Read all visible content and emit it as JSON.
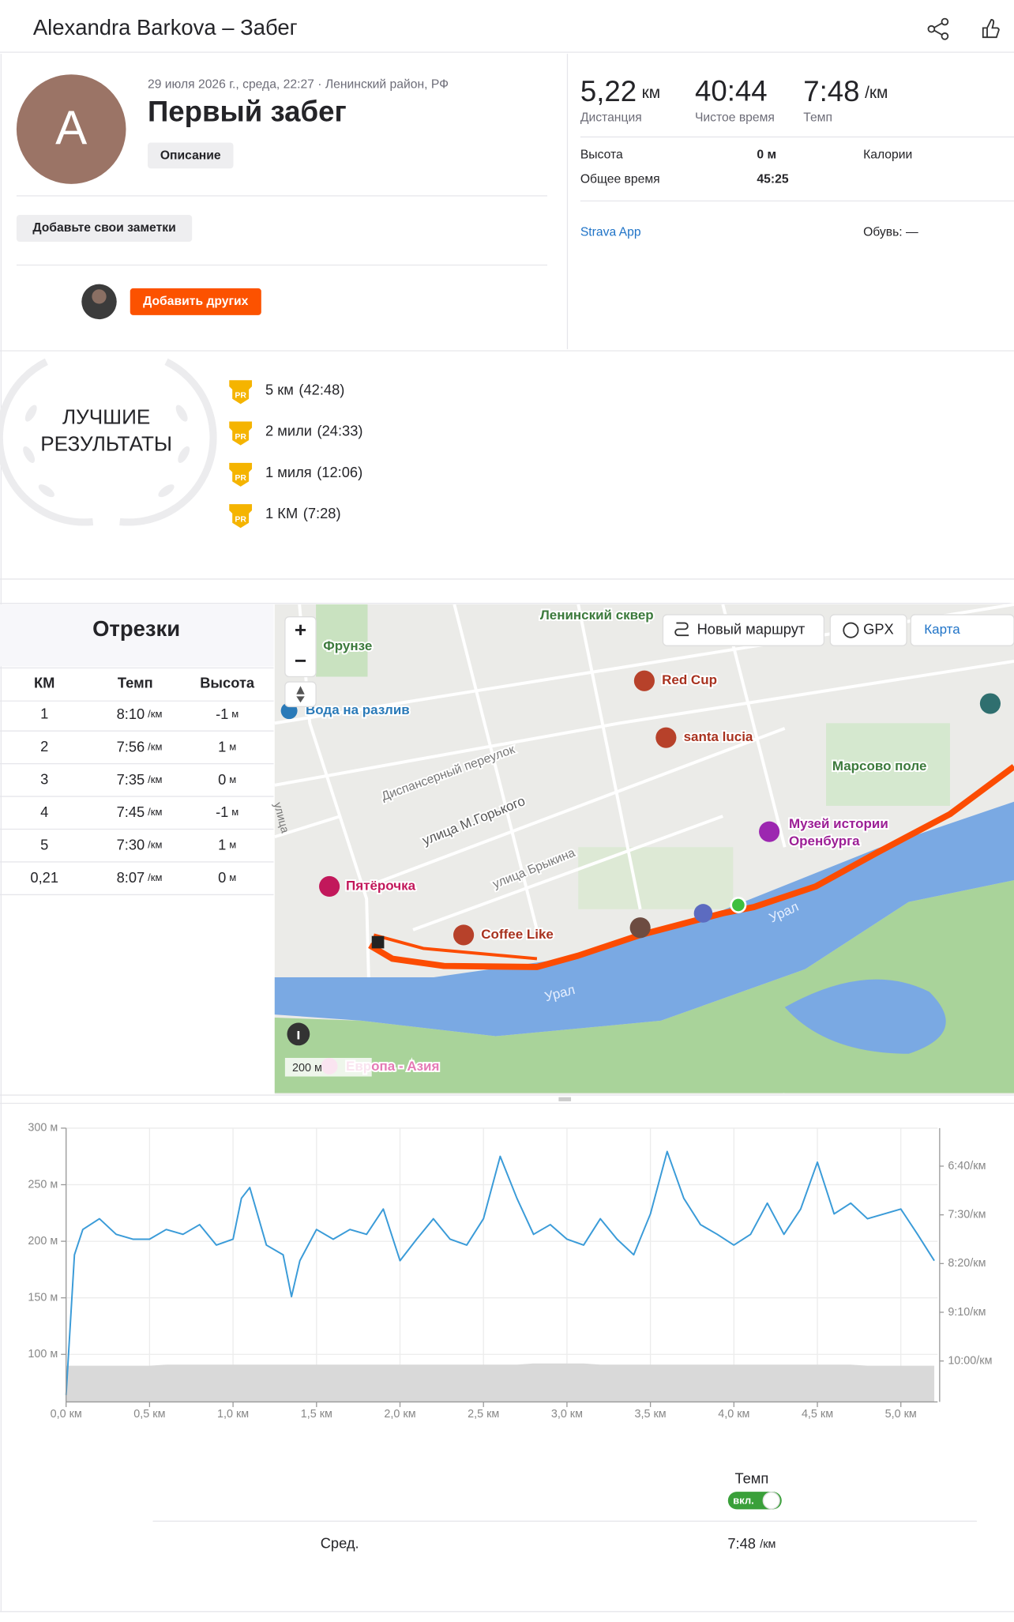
{
  "header": {
    "title": "Alexandra Barkova – Забег"
  },
  "activity": {
    "avatar_letter": "A",
    "date": "29 июля 2026 г., среда, 22:27 · Ленинский район, РФ",
    "name": "Первый забег",
    "description_button": "Описание",
    "notes_button": "Добавьте свои заметки",
    "add_others_button": "Добавить других"
  },
  "stats": {
    "distance": {
      "value": "5,22",
      "unit": "км",
      "label": "Дистанция"
    },
    "moving_time": {
      "value": "40:44",
      "label": "Чистое время"
    },
    "pace": {
      "value": "7:48",
      "unit": "/км",
      "label": "Темп"
    },
    "elevation": {
      "label": "Высота",
      "value": "0 м"
    },
    "calories": {
      "label": "Калории"
    },
    "elapsed": {
      "label": "Общее время",
      "value": "45:25"
    },
    "device": "Strava App",
    "shoes": "Обувь: —"
  },
  "best_results": {
    "title_lines": [
      "ЛУЧШИЕ",
      "РЕЗУЛЬТАТЫ"
    ],
    "items": [
      {
        "badge": "PR",
        "name": "5 км",
        "time": "(42:48)"
      },
      {
        "badge": "PR",
        "name": "2 мили",
        "time": "(24:33)"
      },
      {
        "badge": "PR",
        "name": "1 миля",
        "time": "(12:06)"
      },
      {
        "badge": "PR",
        "name": "1 КМ",
        "time": "(7:28)"
      }
    ]
  },
  "splits": {
    "title": "Отрезки",
    "columns": [
      "КМ",
      "Темп",
      "Высота"
    ],
    "rows": [
      [
        "1",
        "8:10",
        "/км",
        "-1",
        "м"
      ],
      [
        "2",
        "7:56",
        "/км",
        "1",
        "м"
      ],
      [
        "3",
        "7:35",
        "/км",
        "0",
        "м"
      ],
      [
        "4",
        "7:45",
        "/км",
        "-1",
        "м"
      ],
      [
        "5",
        "7:30",
        "/км",
        "1",
        "м"
      ],
      [
        "0,21",
        "8:07",
        "/км",
        "0",
        "м"
      ]
    ]
  },
  "map": {
    "labels": [
      "Ленинский сквер",
      "Фрунзе",
      "Вода на разлив",
      "Red Cup",
      "santa lucia",
      "Марсово поле",
      "Музей истории",
      "Оренбурга",
      "Диспансерный переулок",
      "улица М.Горького",
      "улица Брыкина",
      "Пятёрочка",
      "Coffee Like",
      "Урал",
      "Урал",
      "Европа - Азия",
      "улица"
    ],
    "controls": {
      "zoom_in": "+",
      "zoom_out": "−",
      "new_route": "Новый маршрут",
      "gpx": "GPX",
      "map_type": "Карта"
    },
    "scale": "200 м"
  },
  "chart_data": {
    "type": "line",
    "x": [
      0,
      0.05,
      0.1,
      0.2,
      0.3,
      0.4,
      0.5,
      0.6,
      0.7,
      0.8,
      0.9,
      1.0,
      1.05,
      1.1,
      1.2,
      1.3,
      1.35,
      1.4,
      1.5,
      1.6,
      1.7,
      1.8,
      1.9,
      2.0,
      2.1,
      2.2,
      2.3,
      2.4,
      2.5,
      2.6,
      2.7,
      2.8,
      2.9,
      3.0,
      3.1,
      3.2,
      3.3,
      3.4,
      3.5,
      3.6,
      3.7,
      3.8,
      3.9,
      4.0,
      4.1,
      4.2,
      4.3,
      4.4,
      4.5,
      4.6,
      4.7,
      4.8,
      4.9,
      5.0,
      5.1,
      5.2
    ],
    "series": [
      {
        "color": "#d9d9d9",
        "fill": true,
        "values": [
          90,
          90,
          90,
          90,
          90,
          90,
          90,
          91,
          91,
          91,
          91,
          91,
          91,
          91,
          91,
          91,
          91,
          91,
          91,
          91,
          91,
          91,
          91,
          91,
          91,
          91,
          91,
          91,
          91,
          91,
          91,
          92,
          92,
          92,
          92,
          91,
          91,
          91,
          91,
          91,
          91,
          91,
          91,
          91,
          91,
          91,
          91,
          91,
          91,
          91,
          91,
          90,
          90,
          90,
          90,
          90
        ]
      },
      {
        "name": "Темп",
        "color": "#3a9bd8",
        "axis": "y2",
        "values": [
          635,
          491,
          465,
          454,
          470,
          475,
          475,
          465,
          470,
          460,
          481,
          475,
          433,
          422,
          481,
          491,
          534,
          497,
          465,
          475,
          465,
          470,
          444,
          497,
          475,
          454,
          475,
          481,
          454,
          390,
          433,
          470,
          460,
          475,
          481,
          454,
          475,
          491,
          449,
          385,
          433,
          460,
          470,
          481,
          470,
          438,
          470,
          444,
          396,
          449,
          438,
          454,
          449,
          444,
          470,
          497
        ]
      }
    ],
    "xlim": [
      0,
      5.22
    ],
    "xticks": [
      {
        "value": 0,
        "label": "0,0 км"
      },
      {
        "value": 0.5,
        "label": "0,5 км"
      },
      {
        "value": 1,
        "label": "1,0 км"
      },
      {
        "value": 1.5,
        "label": "1,5 км"
      },
      {
        "value": 2,
        "label": "2,0 км"
      },
      {
        "value": 2.5,
        "label": "2,5 км"
      },
      {
        "value": 3,
        "label": "3,0 км"
      },
      {
        "value": 3.5,
        "label": "3,5 км"
      },
      {
        "value": 4,
        "label": "4,0 км"
      },
      {
        "value": 4.5,
        "label": "4,5 км"
      },
      {
        "value": 5,
        "label": "5,0 км"
      }
    ],
    "ylim": [
      58,
      300
    ],
    "yticks": [
      {
        "value": 100,
        "label": "100 м"
      },
      {
        "value": 150,
        "label": "150 м"
      },
      {
        "value": 200,
        "label": "200 м"
      },
      {
        "value": 250,
        "label": "250 м"
      },
      {
        "value": 300,
        "label": "300 м"
      }
    ],
    "y2lim": [
      642,
      361
    ],
    "y2ticks": [
      {
        "value": 400,
        "label": "6:40/км"
      },
      {
        "value": 450,
        "label": "7:30/км"
      },
      {
        "value": 500,
        "label": "8:20/км"
      },
      {
        "value": 550,
        "label": "9:10/км"
      },
      {
        "value": 600,
        "label": "10:00/км"
      }
    ],
    "grid": true,
    "toggle": "вкл.",
    "summary": {
      "label": "Сред.",
      "value": "7:48",
      "unit": "/км"
    }
  }
}
